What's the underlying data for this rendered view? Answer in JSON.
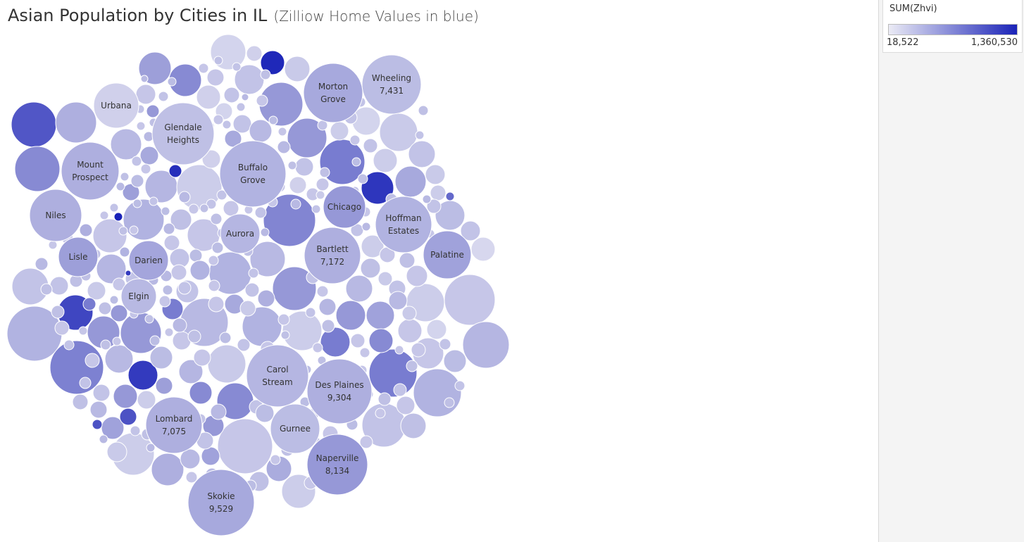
{
  "title": {
    "main": "Asian Population by Cities in IL",
    "sub": "(Zilliow Home Values in blue)"
  },
  "legend": {
    "title": "SUM(Zhvi)",
    "min_label": "18,522",
    "max_label": "1,360,530",
    "color_low": "#ebebf5",
    "color_high": "#1a23b8"
  },
  "chart_data": {
    "type": "packed-bubble",
    "title": "Asian Population by Cities in IL",
    "size_measure": "Asian Population",
    "color_measure": "SUM(Zhvi)",
    "color_range": [
      18522,
      1360530
    ],
    "labeled_bubbles": [
      {
        "city": "Skokie",
        "population": 9529,
        "value_label": "9,529"
      },
      {
        "city": "Des Plaines",
        "population": 9304,
        "value_label": "9,304"
      },
      {
        "city": "Naperville",
        "population": 8134,
        "value_label": "8,134"
      },
      {
        "city": "Wheeling",
        "population": 7431,
        "value_label": "7,431"
      },
      {
        "city": "Bartlett",
        "population": 7172,
        "value_label": "7,172"
      },
      {
        "city": "Lombard",
        "population": 7075,
        "value_label": "7,075"
      },
      {
        "city": "Carol Stream",
        "value_label": ""
      },
      {
        "city": "Buffalo Grove",
        "value_label": ""
      },
      {
        "city": "Glendale Heights",
        "value_label": ""
      },
      {
        "city": "Morton Grove",
        "value_label": ""
      },
      {
        "city": "Mount Prospect",
        "value_label": ""
      },
      {
        "city": "Hoffman Estates",
        "value_label": ""
      },
      {
        "city": "Niles",
        "value_label": ""
      },
      {
        "city": "Urbana",
        "value_label": ""
      },
      {
        "city": "Chicago",
        "value_label": ""
      },
      {
        "city": "Aurora",
        "value_label": ""
      },
      {
        "city": "Palatine",
        "value_label": ""
      },
      {
        "city": "Darien",
        "value_label": ""
      },
      {
        "city": "Lisle",
        "value_label": ""
      },
      {
        "city": "Elgin",
        "value_label": ""
      },
      {
        "city": "Gurnee",
        "value_label": ""
      }
    ]
  }
}
